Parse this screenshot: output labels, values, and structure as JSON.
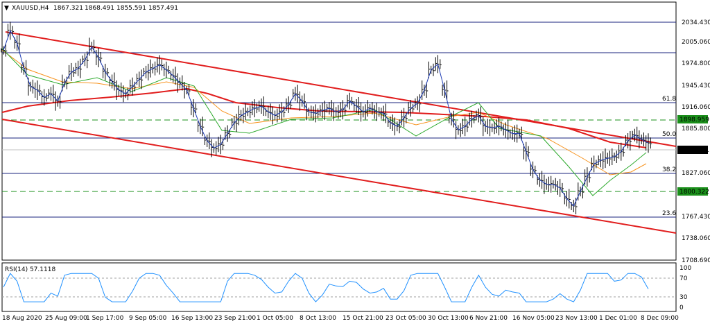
{
  "header": {
    "symbol": "XAUUSD,H4",
    "open": "1867.321",
    "high": "1868.491",
    "low": "1855.591",
    "close": "1857.491"
  },
  "rsi": {
    "label": "RSI(14) 57.1118",
    "levels": [
      100,
      70,
      30,
      0
    ]
  },
  "price_axis": [
    "2034.430",
    "2005.060",
    "1974.800",
    "1945.430",
    "1916.060",
    "1885.800",
    "1827.060",
    "1767.430",
    "1738.060",
    "1708.690"
  ],
  "badges": {
    "current": {
      "text": "1857.491",
      "color": "#000000"
    },
    "upper": {
      "text": "1898.959",
      "color": "#1a8f1a"
    },
    "lower": {
      "text": "1800.322",
      "color": "#1a8f1a"
    }
  },
  "fib_labels": [
    "61.8",
    "50.0",
    "38.2",
    "23.6"
  ],
  "time_axis": [
    "18 Aug 2020",
    "25 Aug 09:00",
    "1 Sep 17:00",
    "9 Sep 05:00",
    "16 Sep 13:00",
    "23 Sep 21:00",
    "1 Oct 05:00",
    "8 Oct 13:00",
    "15 Oct 21:00",
    "23 Oct 05:00",
    "30 Oct 13:00",
    "6 Nov 21:00",
    "16 Nov 05:00",
    "23 Nov 13:00",
    "1 Dec 01:00",
    "8 Dec 09:00"
  ],
  "chart_data": {
    "type": "line",
    "series": [
      {
        "values": [
          1985,
          2012,
          1995,
          1960,
          1935,
          1930,
          1920,
          1925,
          1915,
          1940,
          1955,
          1960,
          1972,
          1990,
          1975,
          1955,
          1942,
          1930,
          1925,
          1935,
          1945,
          1955,
          1960,
          1965,
          1958,
          1950,
          1940,
          1930,
          1905,
          1880,
          1860,
          1850,
          1855,
          1870,
          1885,
          1895,
          1900,
          1905,
          1908,
          1900,
          1895,
          1900,
          1910,
          1925,
          1915,
          1900,
          1898,
          1902,
          1905,
          1900,
          1903,
          1915,
          1908,
          1900,
          1905,
          1900,
          1898,
          1885,
          1880,
          1892,
          1905,
          1912,
          1930,
          1958,
          1966,
          1930,
          1890,
          1875,
          1880,
          1890,
          1895,
          1880,
          1878,
          1880,
          1875,
          1870,
          1870,
          1845,
          1820,
          1806,
          1800,
          1800,
          1795,
          1780,
          1770,
          1790,
          1810,
          1828,
          1833,
          1836,
          1838,
          1845,
          1860,
          1868,
          1862,
          1857
        ]
      }
    ],
    "price_range": [
      1700,
      2045
    ],
    "h_levels": [
      2034.43,
      2005.06,
      1916.06,
      1898.959,
      1880.0,
      1830.0,
      1800.322,
      1770.0
    ],
    "rsi_levels": [
      70,
      30
    ]
  }
}
